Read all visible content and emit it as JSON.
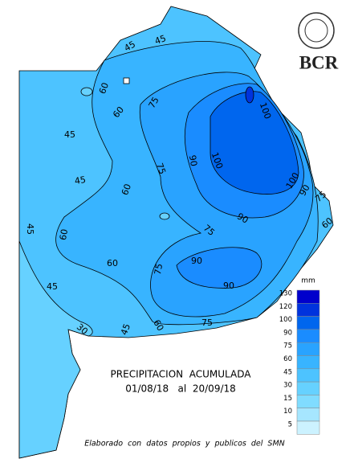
{
  "logo": {
    "text": "BCR"
  },
  "map": {
    "contour_labels": [
      45,
      45,
      60,
      60,
      75,
      45,
      45,
      75,
      60,
      90,
      100,
      100,
      100,
      90,
      75,
      60,
      90,
      75,
      45,
      60,
      60,
      75,
      90,
      90,
      45,
      30,
      45,
      60,
      75
    ]
  },
  "legend": {
    "unit": "mm",
    "levels": [
      {
        "value": 130,
        "color": "#0000cc"
      },
      {
        "value": 120,
        "color": "#0033dd"
      },
      {
        "value": 100,
        "color": "#0066ee"
      },
      {
        "value": 90,
        "color": "#1a8cff"
      },
      {
        "value": 75,
        "color": "#29a3ff"
      },
      {
        "value": 60,
        "color": "#38b4ff"
      },
      {
        "value": 45,
        "color": "#4dc3ff"
      },
      {
        "value": 30,
        "color": "#66d1ff"
      },
      {
        "value": 15,
        "color": "#80dcff"
      },
      {
        "value": 10,
        "color": "#a6e6ff"
      },
      {
        "value": 5,
        "color": "#ccf2ff"
      }
    ]
  },
  "caption": {
    "title": "PRECIPITACION  ACUMULADA",
    "period": "01/08/18   al  20/09/18",
    "credit": "Elaborado  con  datos  propios  y  publicos  del  SMN"
  }
}
